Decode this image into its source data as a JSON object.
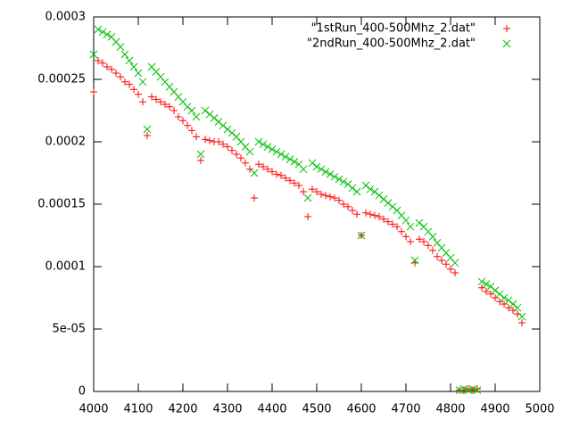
{
  "chart_data": {
    "type": "scatter",
    "x": [
      4000,
      4010,
      4020,
      4030,
      4040,
      4050,
      4060,
      4070,
      4080,
      4090,
      4100,
      4110,
      4120,
      4130,
      4140,
      4150,
      4160,
      4170,
      4180,
      4190,
      4200,
      4210,
      4220,
      4230,
      4240,
      4250,
      4260,
      4270,
      4280,
      4290,
      4300,
      4310,
      4320,
      4330,
      4340,
      4350,
      4360,
      4370,
      4380,
      4390,
      4400,
      4410,
      4420,
      4430,
      4440,
      4450,
      4460,
      4470,
      4480,
      4490,
      4500,
      4510,
      4520,
      4530,
      4540,
      4550,
      4560,
      4570,
      4580,
      4590,
      4600,
      4610,
      4620,
      4630,
      4640,
      4650,
      4660,
      4670,
      4680,
      4690,
      4700,
      4710,
      4720,
      4730,
      4740,
      4750,
      4760,
      4770,
      4780,
      4790,
      4800,
      4810,
      4820,
      4830,
      4840,
      4850,
      4860,
      4870,
      4880,
      4890,
      4900,
      4910,
      4920,
      4930,
      4940,
      4950,
      4960
    ],
    "series": [
      {
        "name": "\"1stRun_400-500Mhz_2.dat\"",
        "color": "#ff0000",
        "marker": "plus",
        "values": [
          0.00024,
          0.000265,
          0.000263,
          0.00026,
          0.000258,
          0.000255,
          0.000252,
          0.000248,
          0.000246,
          0.000242,
          0.000238,
          0.000232,
          0.000205,
          0.000236,
          0.000234,
          0.000232,
          0.00023,
          0.000228,
          0.000225,
          0.00022,
          0.000217,
          0.000213,
          0.000209,
          0.000204,
          0.000185,
          0.000202,
          0.000201,
          0.0002,
          0.0002,
          0.000198,
          0.000196,
          0.000193,
          0.00019,
          0.000187,
          0.000183,
          0.000178,
          0.000155,
          0.000182,
          0.00018,
          0.000178,
          0.000176,
          0.000174,
          0.000173,
          0.000171,
          0.000169,
          0.000167,
          0.000165,
          0.00016,
          0.00014,
          0.000162,
          0.00016,
          0.000158,
          0.000157,
          0.000156,
          0.000155,
          0.000153,
          0.00015,
          0.000148,
          0.000145,
          0.000142,
          0.000125,
          0.000143,
          0.000142,
          0.000141,
          0.00014,
          0.000138,
          0.000136,
          0.000134,
          0.000132,
          0.000128,
          0.000124,
          0.00012,
          0.000103,
          0.000122,
          0.00012,
          0.000117,
          0.000113,
          0.000108,
          0.000105,
          0.000102,
          9.8e-05,
          9.5e-05,
          1e-06,
          1e-06,
          2e-06,
          1e-06,
          2e-06,
          8.3e-05,
          8e-05,
          7.8e-05,
          7.5e-05,
          7.2e-05,
          7e-05,
          6.7e-05,
          6.5e-05,
          6.2e-05,
          5.5e-05
        ]
      },
      {
        "name": "\"2ndRun_400-500Mhz_2.dat\"",
        "color": "#00c000",
        "marker": "cross",
        "values": [
          0.00027,
          0.00029,
          0.000288,
          0.000286,
          0.000284,
          0.00028,
          0.000276,
          0.00027,
          0.000265,
          0.00026,
          0.000255,
          0.000248,
          0.00021,
          0.00026,
          0.000256,
          0.000252,
          0.000248,
          0.000244,
          0.00024,
          0.000236,
          0.000232,
          0.000228,
          0.000225,
          0.00022,
          0.00019,
          0.000225,
          0.000222,
          0.000219,
          0.000216,
          0.000213,
          0.00021,
          0.000207,
          0.000204,
          0.0002,
          0.000196,
          0.000192,
          0.000175,
          0.0002,
          0.000198,
          0.000196,
          0.000194,
          0.000192,
          0.00019,
          0.000188,
          0.000186,
          0.000184,
          0.000182,
          0.000178,
          0.000155,
          0.000183,
          0.00018,
          0.000178,
          0.000176,
          0.000174,
          0.000172,
          0.00017,
          0.000168,
          0.000166,
          0.000163,
          0.00016,
          0.000125,
          0.000165,
          0.000162,
          0.00016,
          0.000157,
          0.000154,
          0.000151,
          0.000148,
          0.000145,
          0.000141,
          0.000137,
          0.000132,
          0.000105,
          0.000135,
          0.000132,
          0.000128,
          0.000124,
          0.000119,
          0.000115,
          0.000111,
          0.000107,
          0.000103,
          1e-06,
          2e-06,
          1e-06,
          2e-06,
          1e-06,
          8.8e-05,
          8.6e-05,
          8.4e-05,
          8.1e-05,
          7.8e-05,
          7.5e-05,
          7.3e-05,
          7e-05,
          6.7e-05,
          6e-05
        ]
      }
    ],
    "xlim": [
      4000,
      5000
    ],
    "ylim": [
      0,
      0.0003
    ],
    "xticks": [
      4000,
      4100,
      4200,
      4300,
      4400,
      4500,
      4600,
      4700,
      4800,
      4900,
      5000
    ],
    "yticks": [
      0,
      {
        "value": 5e-05,
        "label": "5e-05"
      },
      0.0001,
      0.00015,
      0.0002,
      0.00025,
      0.0003
    ],
    "legend": "upper right"
  }
}
